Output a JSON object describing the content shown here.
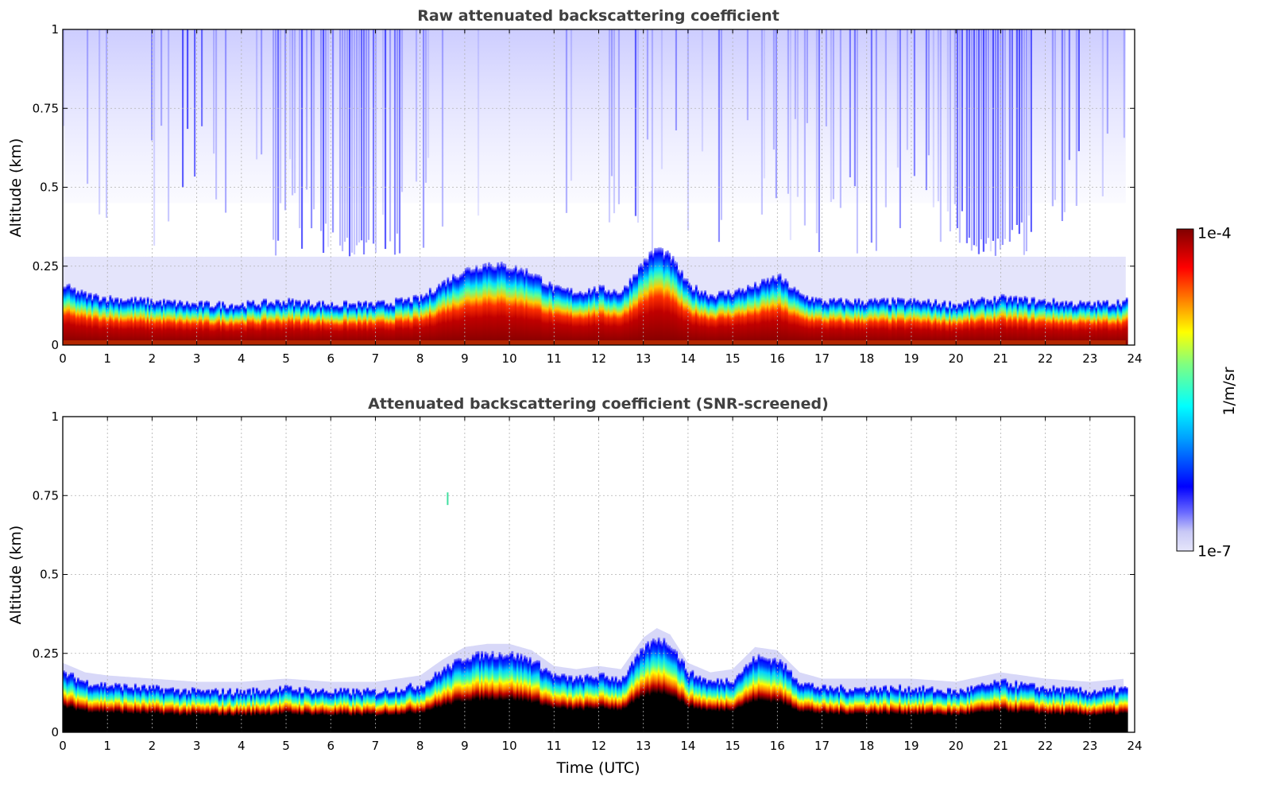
{
  "chart_data": [
    {
      "type": "heatmap",
      "title": "Raw attenuated backscattering coefficient",
      "xlabel": "",
      "ylabel": "Altitude (km)",
      "xlim": [
        0,
        24
      ],
      "ylim": [
        0,
        1
      ],
      "xticks": [
        "0",
        "1",
        "2",
        "3",
        "4",
        "5",
        "6",
        "7",
        "8",
        "9",
        "10",
        "11",
        "12",
        "13",
        "14",
        "15",
        "16",
        "17",
        "18",
        "19",
        "20",
        "21",
        "22",
        "23",
        "24"
      ],
      "yticks": [
        "0",
        "0.25",
        "0.5",
        "0.75",
        "1"
      ],
      "grid": true,
      "data_end_time": 23.8,
      "boundary_layer_top_km": {
        "time_utc": [
          0,
          0.5,
          1,
          2,
          3,
          4,
          5,
          6,
          7,
          8,
          8.5,
          9,
          9.5,
          10,
          10.5,
          11,
          11.5,
          12,
          12.5,
          13,
          13.3,
          13.6,
          14,
          14.5,
          15,
          15.5,
          16,
          16.5,
          17,
          18,
          19,
          20,
          21,
          22,
          23,
          23.8
        ],
        "altitude": [
          0.19,
          0.16,
          0.15,
          0.14,
          0.13,
          0.13,
          0.14,
          0.13,
          0.13,
          0.15,
          0.2,
          0.24,
          0.26,
          0.25,
          0.23,
          0.18,
          0.17,
          0.18,
          0.17,
          0.27,
          0.31,
          0.28,
          0.19,
          0.16,
          0.17,
          0.19,
          0.22,
          0.16,
          0.14,
          0.14,
          0.14,
          0.13,
          0.15,
          0.14,
          0.13,
          0.14
        ]
      },
      "upper_noise_maxima_time_utc": [
        6.5,
        20.8
      ]
    },
    {
      "type": "heatmap",
      "title": "Attenuated backscattering coefficient (SNR-screened)",
      "xlabel": "Time (UTC)",
      "ylabel": "Altitude (km)",
      "xlim": [
        0,
        24
      ],
      "ylim": [
        0,
        1
      ],
      "xticks": [
        "0",
        "1",
        "2",
        "3",
        "4",
        "5",
        "6",
        "7",
        "8",
        "9",
        "10",
        "11",
        "12",
        "13",
        "14",
        "15",
        "16",
        "17",
        "18",
        "19",
        "20",
        "21",
        "22",
        "23",
        "24"
      ],
      "yticks": [
        "0",
        "0.25",
        "0.5",
        "0.75",
        "1"
      ],
      "grid": true,
      "data_end_time": 23.8,
      "boundary_layer_top_km": {
        "time_utc": [
          0,
          0.5,
          1,
          2,
          3,
          4,
          5,
          6,
          7,
          8,
          8.5,
          9,
          9.5,
          10,
          10.5,
          11,
          11.5,
          12,
          12.5,
          13,
          13.3,
          13.6,
          14,
          14.5,
          15,
          15.5,
          16,
          16.5,
          17,
          18,
          19,
          20,
          21,
          22,
          23,
          23.8
        ],
        "altitude": [
          0.19,
          0.16,
          0.15,
          0.14,
          0.13,
          0.13,
          0.14,
          0.13,
          0.13,
          0.15,
          0.2,
          0.24,
          0.25,
          0.25,
          0.23,
          0.18,
          0.17,
          0.18,
          0.17,
          0.27,
          0.3,
          0.28,
          0.19,
          0.16,
          0.17,
          0.24,
          0.23,
          0.16,
          0.14,
          0.14,
          0.14,
          0.13,
          0.16,
          0.14,
          0.13,
          0.14
        ]
      },
      "isolated_feature": {
        "time_utc": 8.6,
        "altitude_km": 0.74
      }
    }
  ],
  "colorbar": {
    "label": "1/m/sr",
    "min_label": "1e-7",
    "max_label": "1e-4",
    "scale": "log",
    "colormap": "jet",
    "colors": [
      "#e6e6fa",
      "#0000ff",
      "#00ffff",
      "#ffff00",
      "#ff0000",
      "#800000"
    ]
  }
}
